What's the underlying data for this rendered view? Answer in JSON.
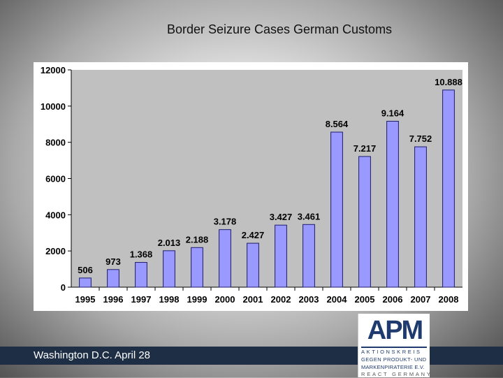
{
  "slide": {
    "title": "Border Seizure Cases German Customs",
    "footer": "Washington D.C. April 28"
  },
  "logo": {
    "letters": "APM",
    "line1": "AKTIONSKREIS",
    "line2": "GEGEN PRODUKT- UND",
    "line3": "MARKENPIRATERIE E.V.",
    "line4": "REACT GERMANY"
  },
  "colors": {
    "plot_bg": "#c0c0c0",
    "bar_fill": "#9999ff",
    "bar_stroke": "#1c1c6e",
    "footer_band": "#1e2f45",
    "logo_blue": "#1e3a6e"
  },
  "chart_data": {
    "type": "bar",
    "title": "",
    "xlabel": "",
    "ylabel": "",
    "categories": [
      "1995",
      "1996",
      "1997",
      "1998",
      "1999",
      "2000",
      "2001",
      "2002",
      "2003",
      "2004",
      "2005",
      "2006",
      "2007",
      "2008"
    ],
    "values": [
      506,
      973,
      1368,
      2013,
      2188,
      3178,
      2427,
      3427,
      3461,
      8564,
      7217,
      9164,
      7752,
      10888
    ],
    "labels": [
      "506",
      "973",
      "1.368",
      "2.013",
      "2.188",
      "3.178",
      "2.427",
      "3.427",
      "3.461",
      "8.564",
      "7.217",
      "9.164",
      "7.752",
      "10.888"
    ],
    "ylim": [
      0,
      12000
    ],
    "yticks": [
      0,
      2000,
      4000,
      6000,
      8000,
      10000,
      12000
    ],
    "ytick_labels": [
      "0",
      "2000",
      "4000",
      "6000",
      "8000",
      "10000",
      "12000"
    ],
    "grid": false,
    "legend": "none"
  }
}
